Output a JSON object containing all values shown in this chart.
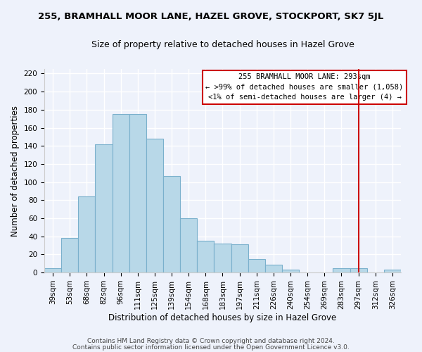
{
  "title": "255, BRAMHALL MOOR LANE, HAZEL GROVE, STOCKPORT, SK7 5JL",
  "subtitle": "Size of property relative to detached houses in Hazel Grove",
  "xlabel": "Distribution of detached houses by size in Hazel Grove",
  "ylabel": "Number of detached properties",
  "bar_labels": [
    "39sqm",
    "53sqm",
    "68sqm",
    "82sqm",
    "96sqm",
    "111sqm",
    "125sqm",
    "139sqm",
    "154sqm",
    "168sqm",
    "183sqm",
    "197sqm",
    "211sqm",
    "226sqm",
    "240sqm",
    "254sqm",
    "269sqm",
    "283sqm",
    "297sqm",
    "312sqm",
    "326sqm"
  ],
  "bar_heights": [
    5,
    38,
    84,
    142,
    175,
    175,
    148,
    107,
    60,
    35,
    32,
    31,
    15,
    9,
    3,
    0,
    0,
    5,
    5,
    0,
    3
  ],
  "bar_color": "#b8d8e8",
  "bar_edge_color": "#7ab0cc",
  "vline_index": 18,
  "vline_color": "#cc0000",
  "annotation_title": "255 BRAMHALL MOOR LANE: 293sqm",
  "annotation_line1": "← >99% of detached houses are smaller (1,058)",
  "annotation_line2": "<1% of semi-detached houses are larger (4) →",
  "annotation_box_color": "white",
  "annotation_box_edge_color": "#cc0000",
  "footer1": "Contains HM Land Registry data © Crown copyright and database right 2024.",
  "footer2": "Contains public sector information licensed under the Open Government Licence v3.0.",
  "ylim": [
    0,
    225
  ],
  "yticks": [
    0,
    20,
    40,
    60,
    80,
    100,
    120,
    140,
    160,
    180,
    200,
    220
  ],
  "background_color": "#eef2fb",
  "plot_bg_color": "#eef2fb",
  "grid_color": "#ffffff",
  "title_fontsize": 9.5,
  "subtitle_fontsize": 9,
  "axis_label_fontsize": 8.5,
  "tick_fontsize": 7.5,
  "footer_fontsize": 6.5
}
